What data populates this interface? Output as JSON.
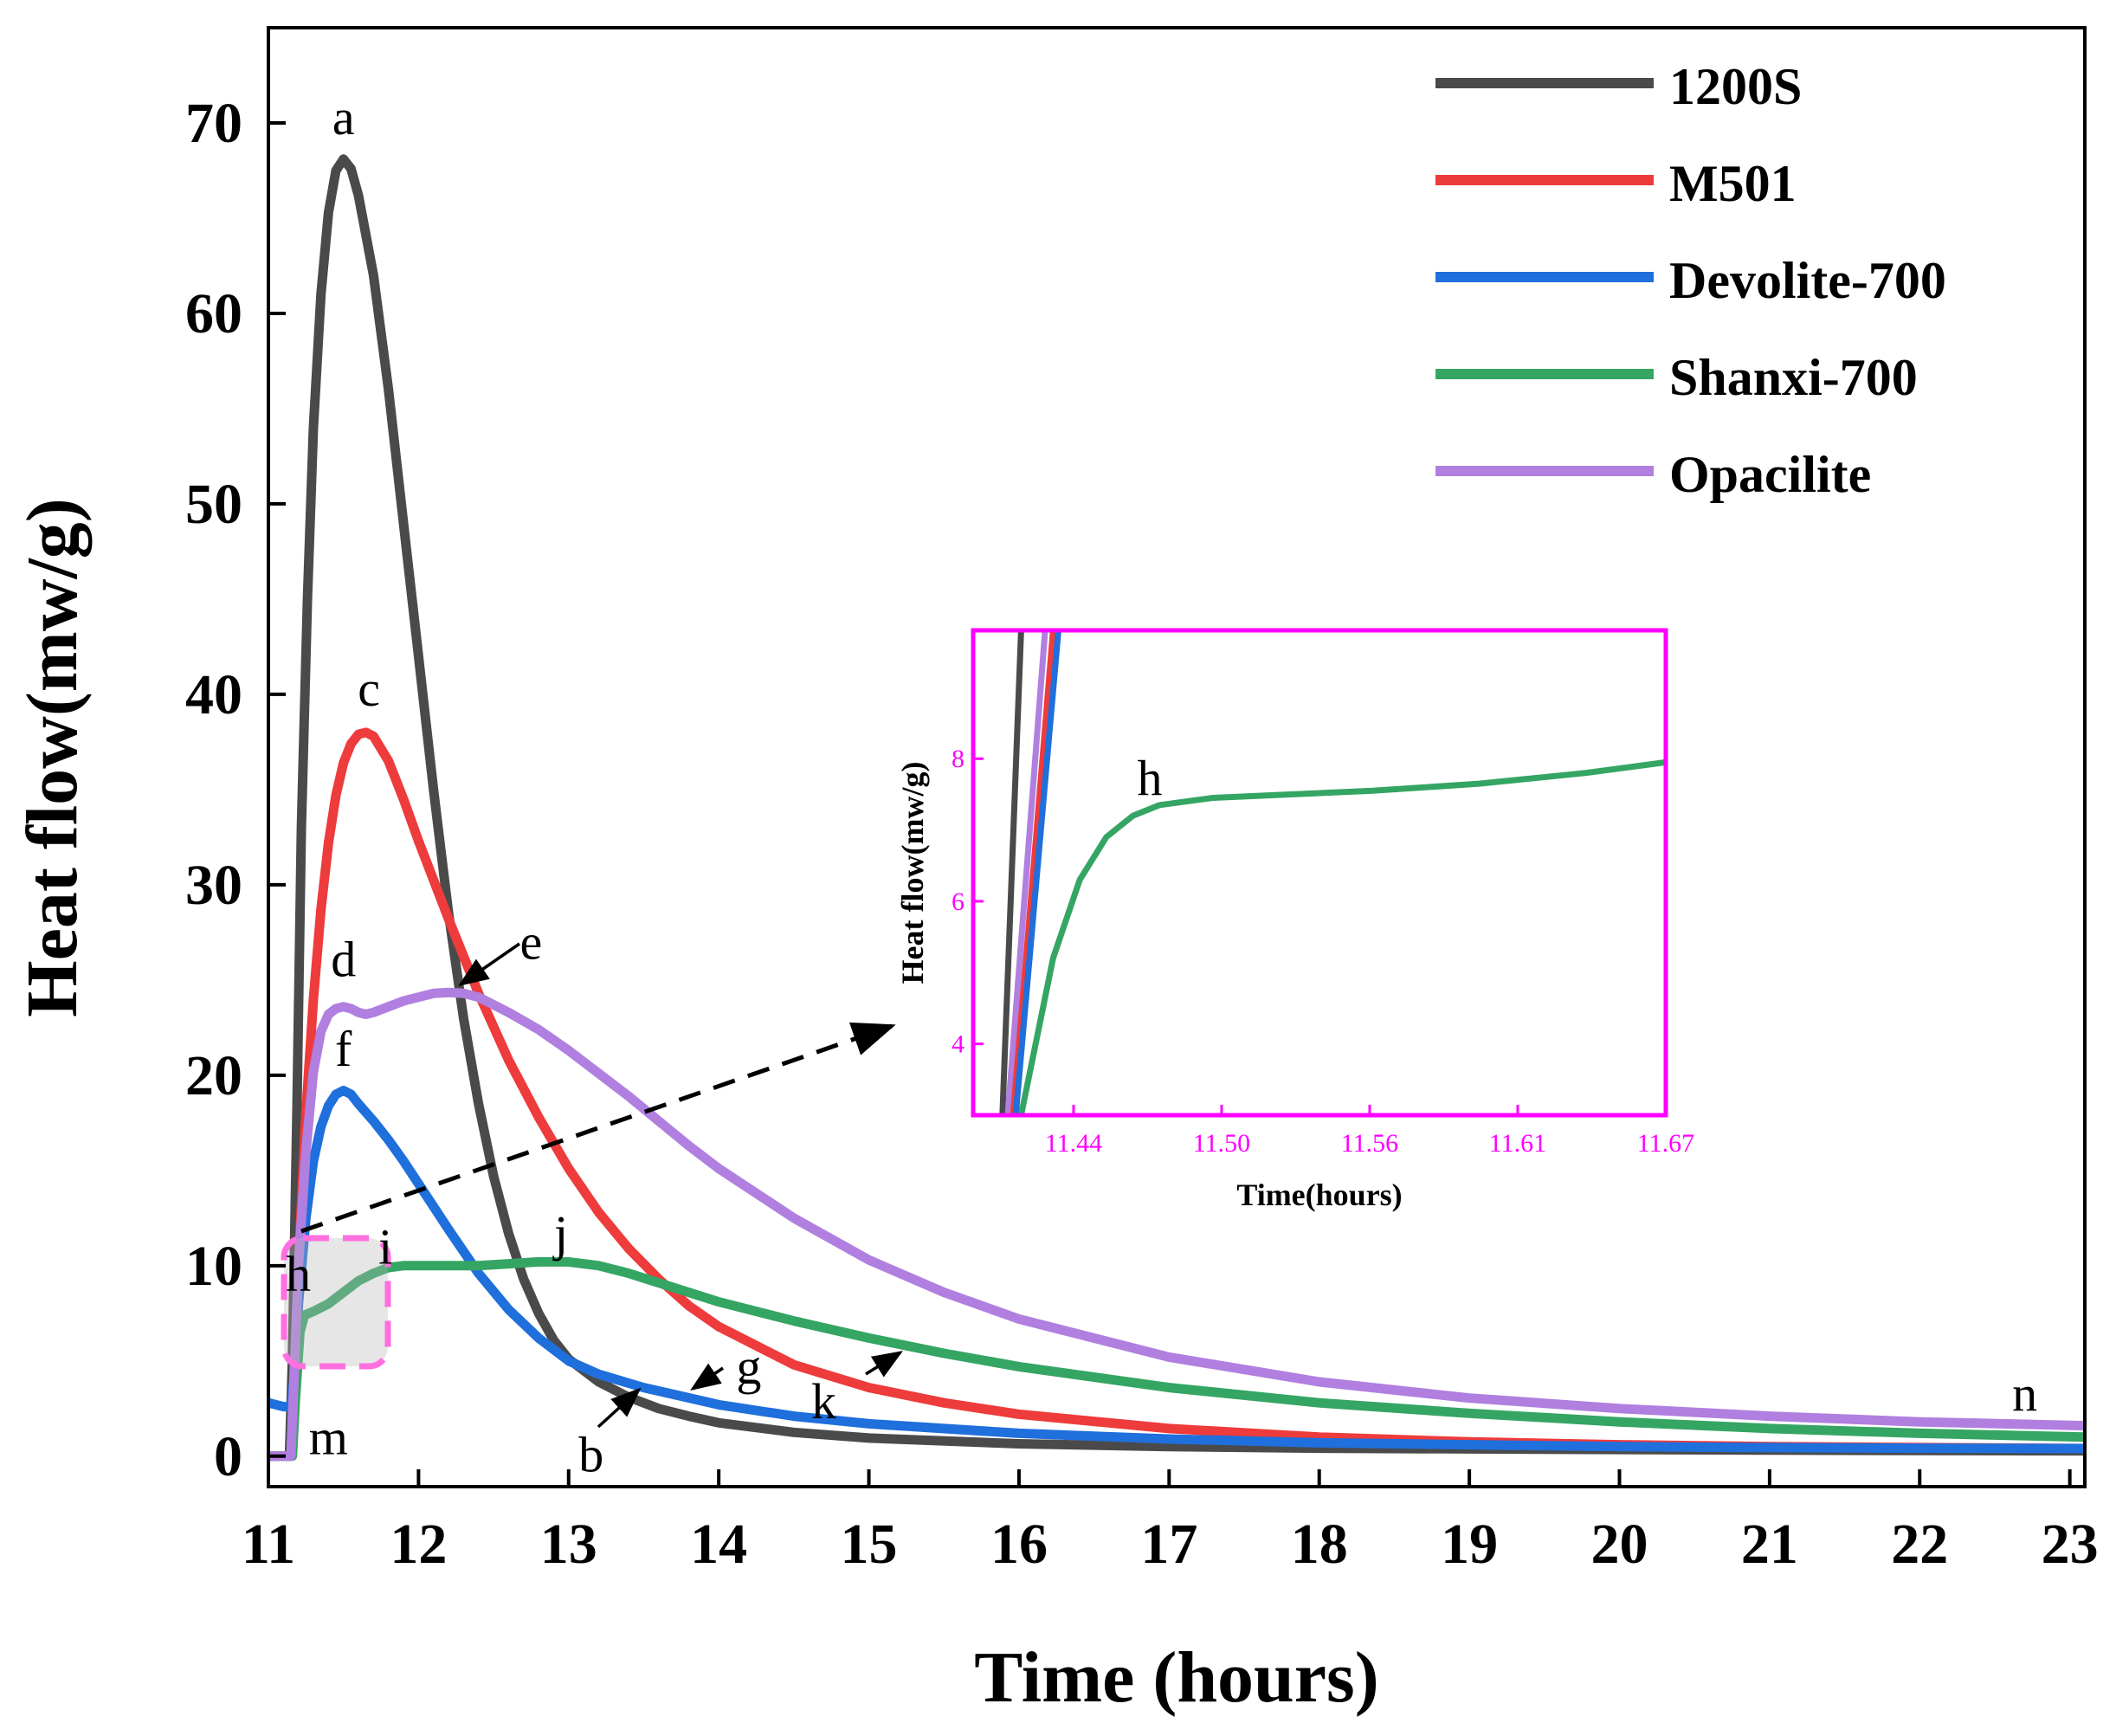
{
  "chart_data": {
    "type": "line",
    "title": "",
    "xlabel": "Time (hours)",
    "ylabel": "Heat flow(mw/g)",
    "xlim": [
      11,
      23.1
    ],
    "ylim": [
      -1.6,
      75
    ],
    "xticks": [
      11,
      12,
      13,
      14,
      15,
      16,
      17,
      18,
      19,
      20,
      21,
      22,
      23
    ],
    "yticks": [
      0,
      10,
      20,
      30,
      40,
      50,
      60,
      70
    ],
    "legend_position": "top-right",
    "series": [
      {
        "name": "1200S",
        "color": "#4a4a4a",
        "points": [
          [
            11.0,
            0
          ],
          [
            11.1,
            0
          ],
          [
            11.14,
            0
          ],
          [
            11.16,
            5
          ],
          [
            11.19,
            18
          ],
          [
            11.22,
            33
          ],
          [
            11.26,
            45
          ],
          [
            11.3,
            54
          ],
          [
            11.35,
            61
          ],
          [
            11.4,
            65.3
          ],
          [
            11.45,
            67.5
          ],
          [
            11.5,
            68.1
          ],
          [
            11.55,
            67.6
          ],
          [
            11.6,
            66.2
          ],
          [
            11.7,
            62
          ],
          [
            11.8,
            56
          ],
          [
            11.9,
            49
          ],
          [
            12.0,
            42
          ],
          [
            12.1,
            35
          ],
          [
            12.2,
            28.5
          ],
          [
            12.3,
            23
          ],
          [
            12.4,
            18.5
          ],
          [
            12.5,
            14.7
          ],
          [
            12.6,
            11.7
          ],
          [
            12.7,
            9.3
          ],
          [
            12.8,
            7.5
          ],
          [
            12.9,
            6.1
          ],
          [
            13.0,
            5.1
          ],
          [
            13.2,
            3.9
          ],
          [
            13.4,
            3.1
          ],
          [
            13.6,
            2.5
          ],
          [
            13.8,
            2.1
          ],
          [
            14.0,
            1.75
          ],
          [
            14.5,
            1.25
          ],
          [
            15.0,
            0.95
          ],
          [
            16.0,
            0.65
          ],
          [
            17.0,
            0.5
          ],
          [
            18.0,
            0.42
          ],
          [
            19.0,
            0.38
          ],
          [
            20.0,
            0.35
          ],
          [
            21.0,
            0.32
          ],
          [
            22.0,
            0.3
          ],
          [
            23.1,
            0.28
          ]
        ]
      },
      {
        "name": "M501",
        "color": "#ee3b3b",
        "points": [
          [
            11.0,
            0
          ],
          [
            11.1,
            0
          ],
          [
            11.15,
            0
          ],
          [
            11.17,
            3
          ],
          [
            11.2,
            10
          ],
          [
            11.25,
            18
          ],
          [
            11.3,
            24
          ],
          [
            11.35,
            28.7
          ],
          [
            11.4,
            32.2
          ],
          [
            11.45,
            34.7
          ],
          [
            11.5,
            36.4
          ],
          [
            11.55,
            37.4
          ],
          [
            11.6,
            37.9
          ],
          [
            11.65,
            38.0
          ],
          [
            11.7,
            37.8
          ],
          [
            11.8,
            36.5
          ],
          [
            11.9,
            34.5
          ],
          [
            12.0,
            32.3
          ],
          [
            12.2,
            28.2
          ],
          [
            12.4,
            24.3
          ],
          [
            12.6,
            20.8
          ],
          [
            12.8,
            17.8
          ],
          [
            13.0,
            15.1
          ],
          [
            13.2,
            12.8
          ],
          [
            13.4,
            10.9
          ],
          [
            13.6,
            9.3
          ],
          [
            13.8,
            7.9
          ],
          [
            14.0,
            6.8
          ],
          [
            14.5,
            4.8
          ],
          [
            15.0,
            3.6
          ],
          [
            15.5,
            2.8
          ],
          [
            16.0,
            2.2
          ],
          [
            17.0,
            1.45
          ],
          [
            18.0,
            1.0
          ],
          [
            19.0,
            0.75
          ],
          [
            20.0,
            0.6
          ],
          [
            21.0,
            0.5
          ],
          [
            22.0,
            0.45
          ],
          [
            23.1,
            0.4
          ]
        ]
      },
      {
        "name": "Devolite-700",
        "color": "#1f6fdc",
        "points": [
          [
            11.0,
            2.8
          ],
          [
            11.1,
            2.6
          ],
          [
            11.15,
            2.6
          ],
          [
            11.17,
            4
          ],
          [
            11.2,
            8
          ],
          [
            11.25,
            12.5
          ],
          [
            11.3,
            15.5
          ],
          [
            11.35,
            17.3
          ],
          [
            11.4,
            18.4
          ],
          [
            11.45,
            19.0
          ],
          [
            11.5,
            19.2
          ],
          [
            11.55,
            19.0
          ],
          [
            11.6,
            18.5
          ],
          [
            11.7,
            17.6
          ],
          [
            11.8,
            16.6
          ],
          [
            11.9,
            15.5
          ],
          [
            12.0,
            14.3
          ],
          [
            12.2,
            11.9
          ],
          [
            12.4,
            9.6
          ],
          [
            12.6,
            7.7
          ],
          [
            12.8,
            6.2
          ],
          [
            13.0,
            5.0
          ],
          [
            13.2,
            4.3
          ],
          [
            13.5,
            3.6
          ],
          [
            14.0,
            2.7
          ],
          [
            14.5,
            2.1
          ],
          [
            15.0,
            1.7
          ],
          [
            16.0,
            1.2
          ],
          [
            17.0,
            0.9
          ],
          [
            18.0,
            0.7
          ],
          [
            19.0,
            0.6
          ],
          [
            20.0,
            0.5
          ],
          [
            21.0,
            0.45
          ],
          [
            22.0,
            0.42
          ],
          [
            23.1,
            0.4
          ]
        ]
      },
      {
        "name": "Shanxi-700",
        "color": "#35a563",
        "points": [
          [
            11.0,
            0
          ],
          [
            11.1,
            0
          ],
          [
            11.16,
            0
          ],
          [
            11.18,
            3
          ],
          [
            11.21,
            6.5
          ],
          [
            11.24,
            7.4
          ],
          [
            11.3,
            7.6
          ],
          [
            11.4,
            8.0
          ],
          [
            11.5,
            8.6
          ],
          [
            11.6,
            9.2
          ],
          [
            11.7,
            9.6
          ],
          [
            11.8,
            9.9
          ],
          [
            11.9,
            10.0
          ],
          [
            12.0,
            10.0
          ],
          [
            12.2,
            10.0
          ],
          [
            12.4,
            10.0
          ],
          [
            12.6,
            10.1
          ],
          [
            12.8,
            10.2
          ],
          [
            13.0,
            10.2
          ],
          [
            13.2,
            10.0
          ],
          [
            13.4,
            9.6
          ],
          [
            13.6,
            9.1
          ],
          [
            13.8,
            8.6
          ],
          [
            14.0,
            8.1
          ],
          [
            14.5,
            7.1
          ],
          [
            15.0,
            6.2
          ],
          [
            15.5,
            5.4
          ],
          [
            16.0,
            4.7
          ],
          [
            17.0,
            3.6
          ],
          [
            18.0,
            2.8
          ],
          [
            19.0,
            2.25
          ],
          [
            20.0,
            1.8
          ],
          [
            21.0,
            1.45
          ],
          [
            22.0,
            1.2
          ],
          [
            23.1,
            1.0
          ]
        ]
      },
      {
        "name": "Opacilite",
        "color": "#b07fe0",
        "points": [
          [
            11.0,
            0
          ],
          [
            11.1,
            0
          ],
          [
            11.15,
            0
          ],
          [
            11.17,
            4
          ],
          [
            11.2,
            10
          ],
          [
            11.25,
            16
          ],
          [
            11.3,
            20.2
          ],
          [
            11.35,
            22.3
          ],
          [
            11.4,
            23.2
          ],
          [
            11.45,
            23.5
          ],
          [
            11.5,
            23.6
          ],
          [
            11.55,
            23.5
          ],
          [
            11.6,
            23.3
          ],
          [
            11.65,
            23.2
          ],
          [
            11.7,
            23.3
          ],
          [
            11.8,
            23.6
          ],
          [
            11.9,
            23.9
          ],
          [
            12.0,
            24.1
          ],
          [
            12.1,
            24.3
          ],
          [
            12.2,
            24.35
          ],
          [
            12.3,
            24.3
          ],
          [
            12.4,
            24.1
          ],
          [
            12.5,
            23.7
          ],
          [
            12.6,
            23.3
          ],
          [
            12.8,
            22.4
          ],
          [
            13.0,
            21.3
          ],
          [
            13.2,
            20.1
          ],
          [
            13.4,
            18.9
          ],
          [
            13.6,
            17.6
          ],
          [
            13.8,
            16.3
          ],
          [
            14.0,
            15.1
          ],
          [
            14.5,
            12.5
          ],
          [
            15.0,
            10.3
          ],
          [
            15.5,
            8.6
          ],
          [
            16.0,
            7.2
          ],
          [
            17.0,
            5.2
          ],
          [
            18.0,
            3.9
          ],
          [
            19.0,
            3.05
          ],
          [
            20.0,
            2.5
          ],
          [
            21.0,
            2.1
          ],
          [
            22.0,
            1.8
          ],
          [
            23.1,
            1.6
          ]
        ]
      }
    ],
    "annotations": [
      {
        "label": "a",
        "x": 11.5,
        "y": 69.4
      },
      {
        "label": "c",
        "x": 11.67,
        "y": 39.4
      },
      {
        "label": "e",
        "x": 12.75,
        "y": 26.1
      },
      {
        "label": "d",
        "x": 11.5,
        "y": 25.2
      },
      {
        "label": "f",
        "x": 11.5,
        "y": 20.5
      },
      {
        "label": "h",
        "x": 11.2,
        "y": 8.7
      },
      {
        "label": "i",
        "x": 11.78,
        "y": 10.1
      },
      {
        "label": "j",
        "x": 12.95,
        "y": 10.8
      },
      {
        "label": "g",
        "x": 14.2,
        "y": 3.8
      },
      {
        "label": "k",
        "x": 14.7,
        "y": 2.0
      },
      {
        "label": "b",
        "x": 13.15,
        "y": -0.8
      },
      {
        "label": "m",
        "x": 11.4,
        "y": 0.1
      },
      {
        "label": "n",
        "x": 22.7,
        "y": 2.4
      }
    ],
    "inset": {
      "xlabel": "Time(hours)",
      "ylabel": "Heat flow(mw/g)",
      "xlim": [
        11.41,
        11.67
      ],
      "ylim": [
        3,
        9.8
      ],
      "xtick_labels": [
        "11.44",
        "11.50",
        "11.56",
        "11.61",
        "11.67"
      ],
      "yticks": [
        4,
        6,
        8
      ],
      "annotation": "h",
      "series": [
        {
          "name": "1200S",
          "color": "#4a4a4a",
          "points": [
            [
              11.421,
              3
            ],
            [
              11.428,
              9.8
            ]
          ]
        },
        {
          "name": "Opacilite",
          "color": "#b07fe0",
          "points": [
            [
              11.423,
              3
            ],
            [
              11.437,
              9.8
            ]
          ]
        },
        {
          "name": "M501",
          "color": "#ee3b3b",
          "points": [
            [
              11.425,
              3
            ],
            [
              11.44,
              9.8
            ]
          ]
        },
        {
          "name": "Devolite-700",
          "color": "#1f6fdc",
          "points": [
            [
              11.426,
              3
            ],
            [
              11.442,
              9.8
            ]
          ]
        },
        {
          "name": "Shanxi-700",
          "color": "#35a563",
          "points": [
            [
              11.428,
              3
            ],
            [
              11.44,
              5.2
            ],
            [
              11.45,
              6.3
            ],
            [
              11.46,
              6.9
            ],
            [
              11.47,
              7.2
            ],
            [
              11.48,
              7.35
            ],
            [
              11.5,
              7.45
            ],
            [
              11.53,
              7.5
            ],
            [
              11.56,
              7.55
            ],
            [
              11.6,
              7.65
            ],
            [
              11.64,
              7.8
            ],
            [
              11.67,
              7.95
            ]
          ]
        }
      ]
    }
  }
}
